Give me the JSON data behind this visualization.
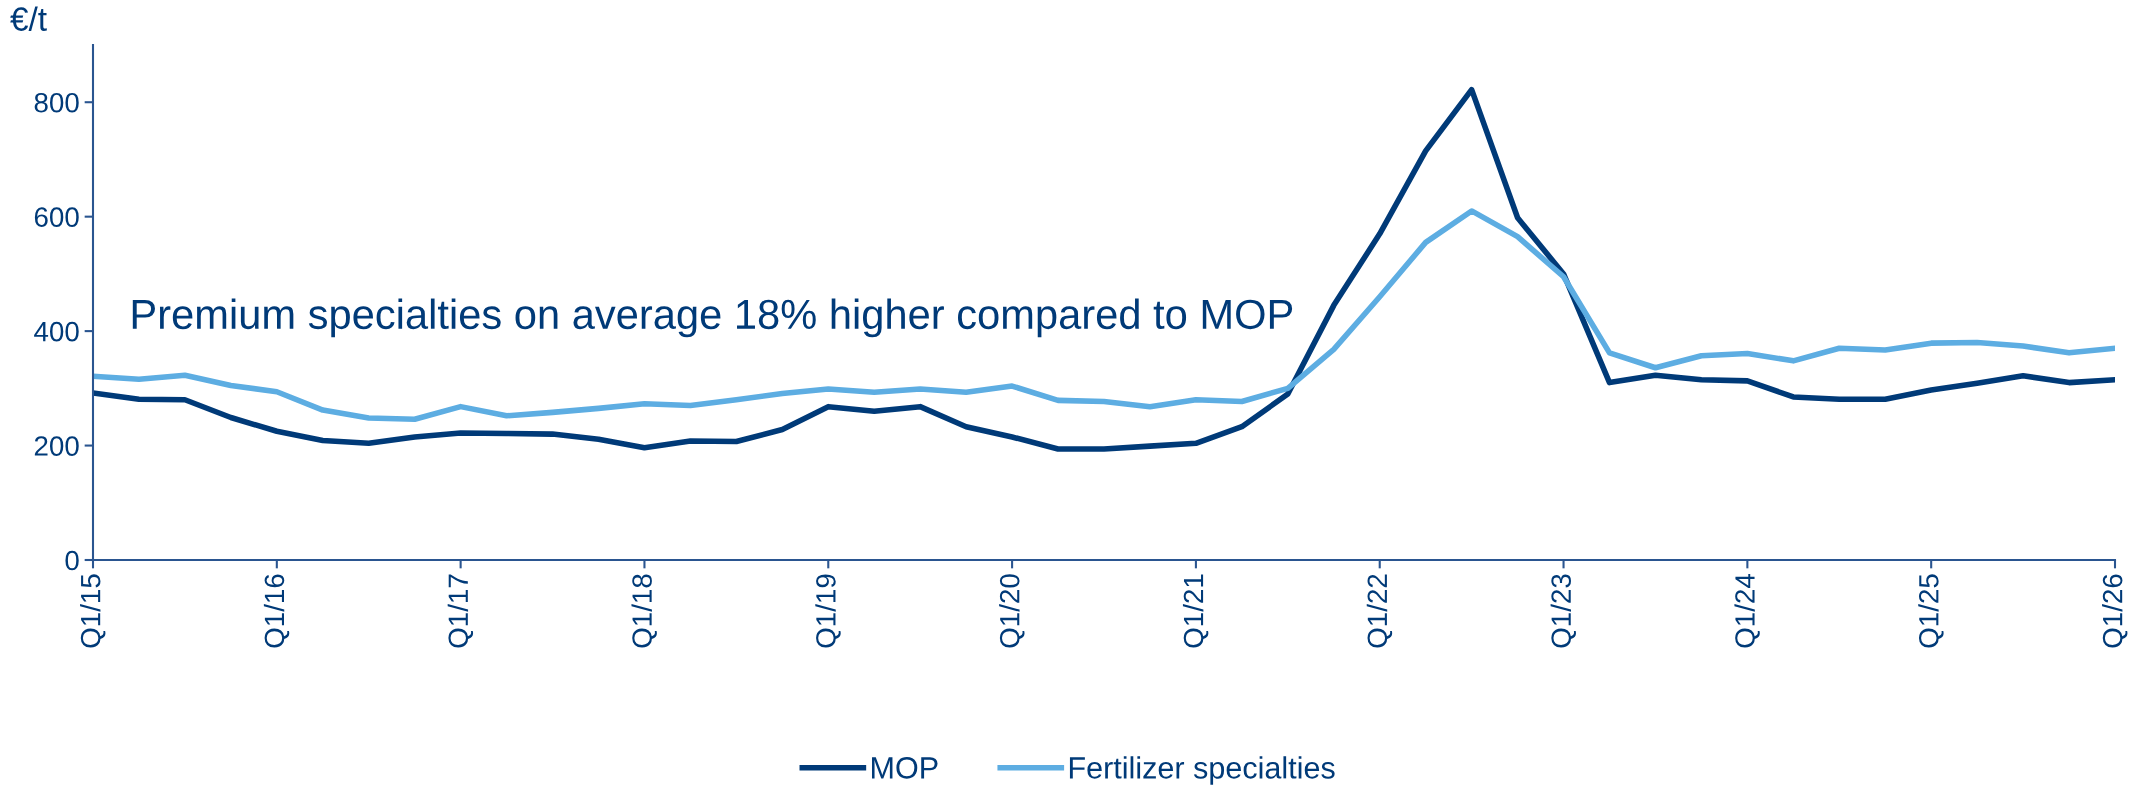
{
  "chart_data": {
    "type": "line",
    "ylabel": "€/t",
    "categories": [
      "Q1/15",
      null,
      null,
      null,
      "Q1/16",
      null,
      null,
      null,
      "Q1/17",
      null,
      null,
      null,
      "Q1/18",
      null,
      null,
      null,
      "Q1/19",
      null,
      null,
      null,
      "Q1/20",
      null,
      null,
      null,
      "Q1/21",
      null,
      null,
      null,
      "Q1/22",
      null,
      null,
      null,
      "Q1/23",
      null,
      null,
      null,
      "Q1/24",
      null,
      null,
      null,
      "Q1/25",
      null,
      null,
      null,
      "Q1/26"
    ],
    "series": [
      {
        "name": "MOP",
        "color": "#003a78",
        "values": [
          292,
          281,
          280,
          249,
          225,
          209,
          204,
          215,
          222,
          221,
          220,
          211,
          196,
          208,
          207,
          228,
          268,
          260,
          268,
          233,
          215,
          194,
          194,
          199,
          204,
          233,
          290,
          445,
          570,
          715,
          822,
          598,
          500,
          310,
          323,
          315,
          313,
          285,
          281,
          281,
          297,
          309,
          322,
          310,
          315
        ]
      },
      {
        "name": "Fertilizer specialties",
        "color": "#5dade2",
        "values": [
          321,
          316,
          323,
          305,
          294,
          262,
          248,
          246,
          268,
          252,
          258,
          265,
          273,
          270,
          280,
          291,
          299,
          293,
          299,
          293,
          304,
          279,
          277,
          268,
          280,
          277,
          300,
          368,
          460,
          555,
          610,
          565,
          495,
          362,
          336,
          357,
          361,
          348,
          370,
          367,
          379,
          380,
          374,
          362,
          370
        ]
      }
    ],
    "ylim": [
      0,
      900
    ],
    "yticks": [
      0,
      200,
      400,
      600,
      800
    ],
    "grid": false,
    "legend": "bottom",
    "line_style": "solid",
    "marker": "none",
    "annotations": [
      "Premium specialties on average 18% higher compared to MOP"
    ]
  }
}
